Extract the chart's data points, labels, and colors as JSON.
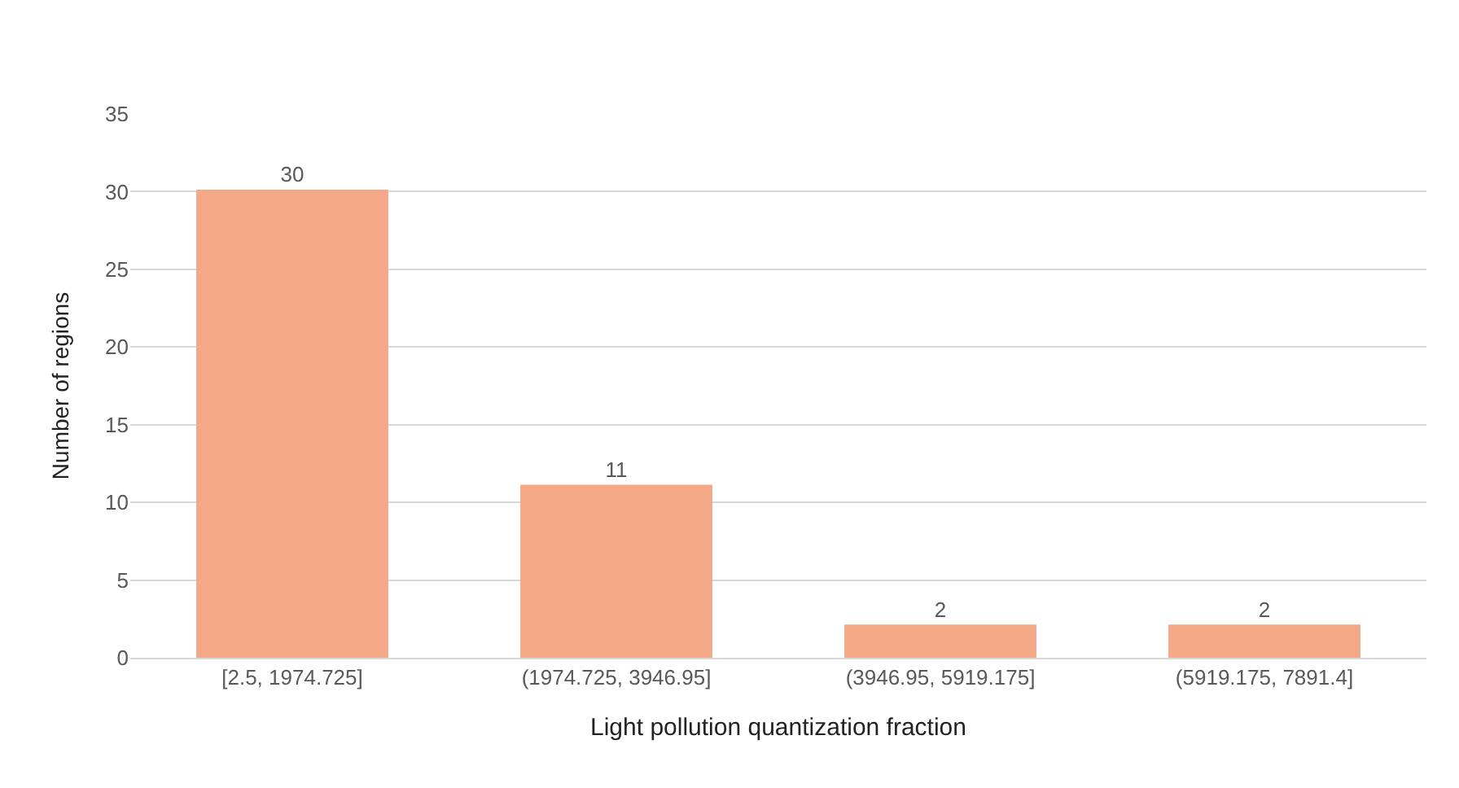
{
  "chart_data": {
    "type": "bar",
    "xlabel": "Light pollution quantization fraction",
    "ylabel": "Number of regions",
    "categories": [
      "[2.5, 1974.725]",
      "(1974.725, 3946.95]",
      "(3946.95, 5919.175]",
      "(5919.175, 7891.4]"
    ],
    "values": [
      30,
      11,
      2,
      2
    ],
    "color": "#f4a886",
    "ylim": [
      0,
      35
    ],
    "yticks": [
      0,
      5,
      10,
      15,
      20,
      25,
      30,
      35
    ],
    "grid": "y",
    "data_labels": true
  }
}
